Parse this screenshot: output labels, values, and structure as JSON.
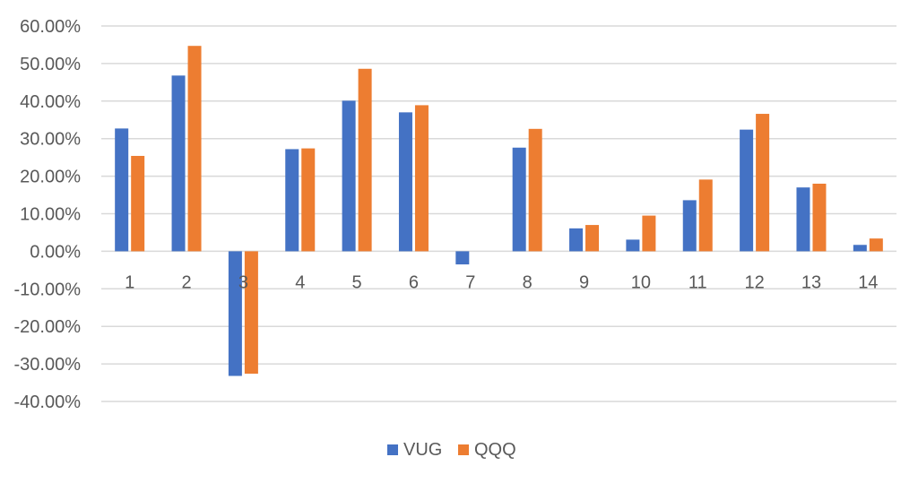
{
  "chart_data": {
    "type": "bar",
    "title": "",
    "xlabel": "",
    "ylabel": "",
    "categories": [
      "1",
      "2",
      "3",
      "4",
      "5",
      "6",
      "7",
      "8",
      "9",
      "10",
      "11",
      "12",
      "13",
      "14"
    ],
    "series": [
      {
        "name": "VUG",
        "color": "#4472C4",
        "values": [
          32.7,
          46.8,
          -33.2,
          27.2,
          40.1,
          37.0,
          -3.5,
          27.6,
          6.1,
          3.1,
          13.6,
          32.4,
          17.0,
          1.7
        ]
      },
      {
        "name": "QQQ",
        "color": "#ED7D31",
        "values": [
          25.4,
          54.7,
          -32.6,
          27.4,
          48.6,
          38.9,
          0.0,
          32.6,
          7.0,
          9.5,
          19.1,
          36.6,
          18.0,
          3.4
        ]
      }
    ],
    "ylim": [
      -40,
      60
    ],
    "yticks": [
      "60.00%",
      "50.00%",
      "40.00%",
      "30.00%",
      "20.00%",
      "10.00%",
      "0.00%",
      "-10.00%",
      "-20.00%",
      "-30.00%",
      "-40.00%"
    ],
    "ytick_values": [
      60,
      50,
      40,
      30,
      20,
      10,
      0,
      -10,
      -20,
      -30,
      -40
    ],
    "grid": true,
    "legend_position": "bottom"
  }
}
